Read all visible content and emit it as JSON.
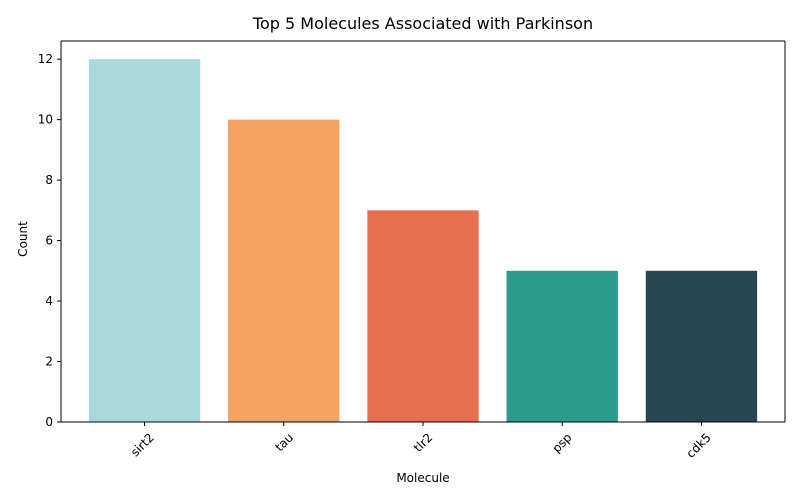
{
  "chart_data": {
    "type": "bar",
    "title": "Top 5 Molecules Associated with Parkinson",
    "xlabel": "Molecule",
    "ylabel": "Count",
    "categories": [
      "sirt2",
      "tau",
      "tlr2",
      "psp",
      "cdk5"
    ],
    "values": [
      12,
      10,
      7,
      5,
      5
    ],
    "colors": [
      "#a8dadc",
      "#f4a261",
      "#e76f51",
      "#2a9d8f",
      "#264653"
    ],
    "ylim": [
      0,
      12.6
    ],
    "yticks": [
      0,
      2,
      4,
      6,
      8,
      10,
      12
    ],
    "xtick_rotation_deg": 45,
    "grid": false,
    "legend": "none"
  }
}
